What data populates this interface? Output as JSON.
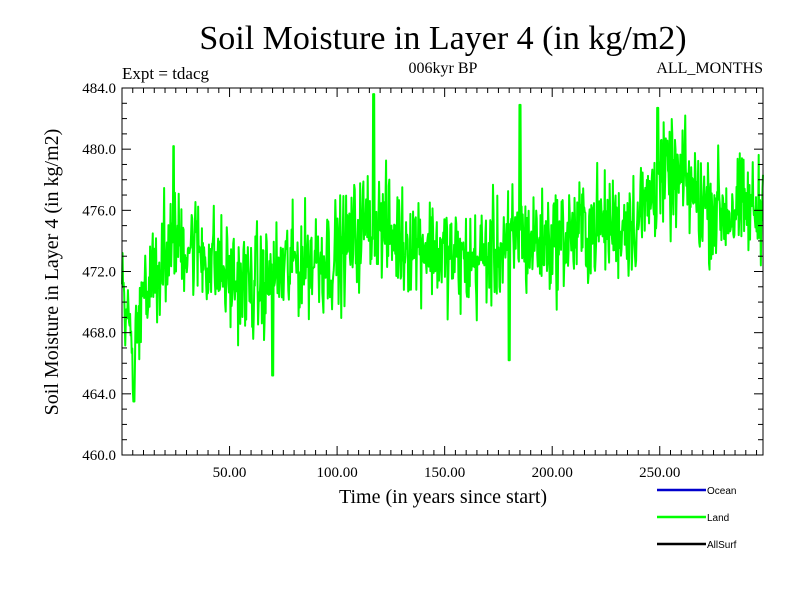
{
  "chart_data": {
    "type": "line",
    "title": "Soil Moisture in Layer 4 (in kg/m2)",
    "subtitle": "006kyr BP",
    "experiment": "Expt = tdacg",
    "period": "ALL_MONTHS",
    "xlabel": "Time (in years since start)",
    "ylabel": "Soil Moisture in Layer 4 (in kg/m2)",
    "xlim": [
      0,
      298
    ],
    "ylim": [
      460,
      484
    ],
    "x_ticks": [
      50,
      100,
      150,
      200,
      250
    ],
    "x_tick_labels": [
      "50.00",
      "100.00",
      "150.00",
      "200.00",
      "250.00"
    ],
    "y_ticks": [
      460,
      464,
      468,
      472,
      476,
      480,
      484
    ],
    "y_tick_labels": [
      "460.0",
      "464.0",
      "468.0",
      "472.0",
      "476.0",
      "480.0",
      "484.0"
    ],
    "grid": false,
    "legend": [
      {
        "name": "Ocean",
        "color": "#0000cc"
      },
      {
        "name": "Land",
        "color": "#00ff00"
      },
      {
        "name": "AllSurf",
        "color": "#000000"
      }
    ],
    "series": [
      {
        "name": "Land",
        "color": "#00ff00",
        "trend": {
          "x": [
            0,
            3,
            5,
            10,
            15,
            20,
            25,
            30,
            40,
            50,
            60,
            70,
            80,
            90,
            100,
            110,
            115,
            120,
            130,
            140,
            150,
            160,
            170,
            180,
            190,
            200,
            210,
            220,
            230,
            240,
            250,
            260,
            270,
            280,
            290,
            298
          ],
          "y": [
            470.5,
            468.5,
            467.5,
            471.0,
            472.5,
            473.5,
            474.0,
            474.0,
            473.0,
            471.5,
            471.0,
            471.5,
            472.5,
            473.0,
            473.0,
            474.5,
            475.5,
            475.0,
            474.0,
            474.0,
            473.0,
            472.5,
            473.0,
            474.0,
            474.0,
            474.0,
            474.5,
            475.0,
            475.0,
            475.5,
            478.0,
            478.0,
            476.5,
            476.0,
            476.0,
            476.0
          ]
        },
        "extremes": [
          {
            "x": 5.5,
            "y": 463.5
          },
          {
            "x": 24,
            "y": 480.2
          },
          {
            "x": 70,
            "y": 465.2
          },
          {
            "x": 117,
            "y": 483.6
          },
          {
            "x": 180,
            "y": 466.2
          },
          {
            "x": 185,
            "y": 482.9
          },
          {
            "x": 249,
            "y": 482.7
          }
        ],
        "amplitude": 2.7,
        "points": 1188
      }
    ]
  }
}
